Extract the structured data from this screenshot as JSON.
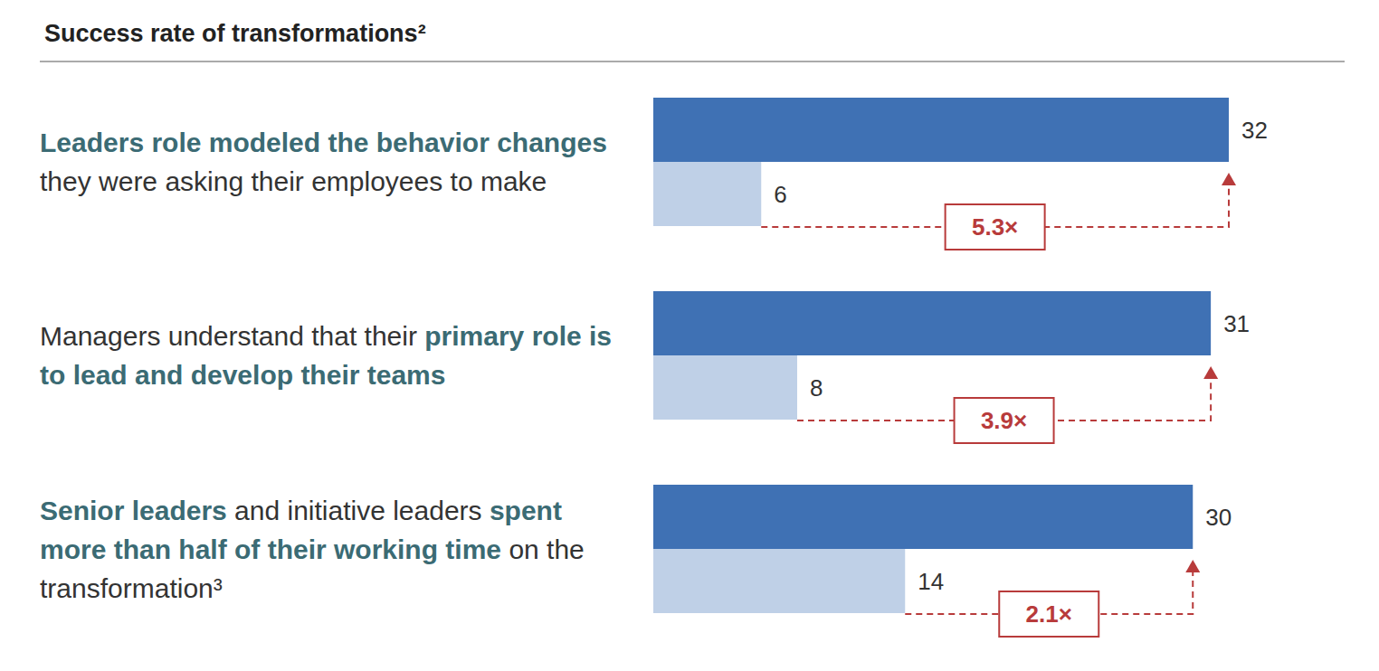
{
  "chart_data": {
    "type": "bar",
    "orientation": "horizontal",
    "title": "Success rate of transformations²",
    "categories": [
      "Leaders role modeled the behavior changes they were asking their employees to make",
      "Managers understand that their primary role is to lead and develop their teams",
      "Senior leaders and initiative leaders spent more than half of their working time on the transformation³"
    ],
    "highlights": [
      [
        "Leaders role modeled the behavior changes"
      ],
      [
        "primary role is to lead and develop their teams"
      ],
      [
        "Senior leaders",
        "spent more than half of their working time"
      ]
    ],
    "series": [
      {
        "color": "#3f71b4",
        "values": [
          32,
          31,
          30
        ]
      },
      {
        "color": "#bfd0e7",
        "values": [
          6,
          8,
          14
        ]
      }
    ],
    "annotations": [
      "5.3×",
      "3.9×",
      "2.1×"
    ],
    "xlim": [
      0,
      32
    ],
    "data_labels": true,
    "tick_labels": "y",
    "grid": false
  }
}
